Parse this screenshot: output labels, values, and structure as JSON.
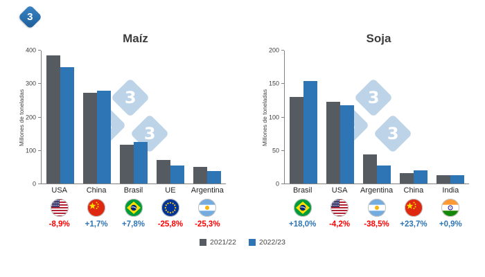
{
  "logo": {
    "text": "3"
  },
  "colors": {
    "series1": "#555b61",
    "series2": "#2e75b6",
    "positive": "#2e75b6",
    "negative": "#ff0000",
    "watermark": "#b5cde5"
  },
  "legend": {
    "items": [
      {
        "label": "2021/22",
        "color": "#555b61"
      },
      {
        "label": "2022/23",
        "color": "#2e75b6"
      }
    ]
  },
  "chart_data": [
    {
      "type": "bar",
      "title": "Maíz",
      "ylabel": "Millones de toneladas",
      "ylim": [
        0,
        400
      ],
      "yticks": [
        0,
        100,
        200,
        300,
        400
      ],
      "grid": false,
      "legend_position": "bottom",
      "categories": [
        "USA",
        "China",
        "Brasil",
        "UE",
        "Argentina"
      ],
      "flags": [
        "usa",
        "china",
        "brasil",
        "ue",
        "argentina"
      ],
      "series": [
        {
          "name": "2021/22",
          "values": [
            383,
            272,
            116,
            71,
            49
          ]
        },
        {
          "name": "2022/23",
          "values": [
            349,
            277,
            125,
            53,
            37
          ]
        }
      ],
      "changes": [
        {
          "label": "-8,9%",
          "direction": "down"
        },
        {
          "label": "+1,7%",
          "direction": "up"
        },
        {
          "label": "+7,8%",
          "direction": "up"
        },
        {
          "label": "-25,8%",
          "direction": "down"
        },
        {
          "label": "-25,3%",
          "direction": "down"
        }
      ]
    },
    {
      "type": "bar",
      "title": "Soja",
      "ylabel": "Millones de toneladas",
      "ylim": [
        0,
        200
      ],
      "yticks": [
        0,
        50,
        100,
        150,
        200
      ],
      "grid": false,
      "legend_position": "bottom",
      "categories": [
        "Brasil",
        "USA",
        "Argentina",
        "China",
        "India"
      ],
      "flags": [
        "brasil",
        "usa",
        "argentina",
        "china",
        "india"
      ],
      "series": [
        {
          "name": "2021/22",
          "values": [
            130,
            122,
            44,
            16,
            12
          ]
        },
        {
          "name": "2022/23",
          "values": [
            153,
            117,
            27,
            20,
            12
          ]
        }
      ],
      "changes": [
        {
          "label": "+18,0%",
          "direction": "up"
        },
        {
          "label": "-4,2%",
          "direction": "down"
        },
        {
          "label": "-38,5%",
          "direction": "down"
        },
        {
          "label": "+23,7%",
          "direction": "up"
        },
        {
          "label": "+0,9%",
          "direction": "up"
        }
      ]
    }
  ]
}
